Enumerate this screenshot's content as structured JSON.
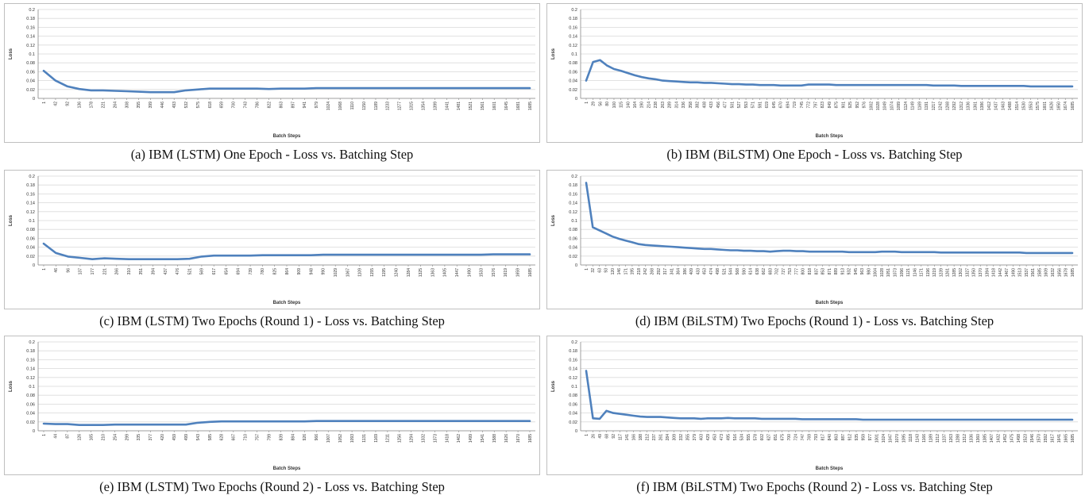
{
  "styles": {
    "line_color": "#4f81bd",
    "grid_color": "#d9d9d9",
    "frame_color": "#bfbfbf",
    "text_color": "#333333"
  },
  "chart_data": [
    {
      "type": "line",
      "caption": "(a) IBM (LSTM) One Epoch - Loss vs. Batching Step",
      "xlabel": "Batch Steps",
      "ylabel": "Loss",
      "ylim": [
        0,
        0.2
      ],
      "yticks": [
        "0",
        "0.02",
        "0.04",
        "0.06",
        "0.08",
        "0.1",
        "0.12",
        "0.14",
        "0.16",
        "0.18",
        "0.2"
      ],
      "grid": true,
      "legend": "none",
      "categories": [
        "1",
        "42",
        "92",
        "136",
        "178",
        "221",
        "264",
        "308",
        "355",
        "399",
        "446",
        "493",
        "532",
        "575",
        "618",
        "659",
        "700",
        "743",
        "786",
        "822",
        "863",
        "897",
        "941",
        "979",
        "1024",
        "1068",
        "1110",
        "1150",
        "1189",
        "1233",
        "1277",
        "1315",
        "1354",
        "1399",
        "1441",
        "1481",
        "1521",
        "1561",
        "1601",
        "1645",
        "1681",
        "1685"
      ],
      "values": [
        0.062,
        0.04,
        0.027,
        0.021,
        0.018,
        0.018,
        0.017,
        0.016,
        0.015,
        0.014,
        0.014,
        0.014,
        0.018,
        0.02,
        0.022,
        0.022,
        0.022,
        0.022,
        0.022,
        0.021,
        0.022,
        0.022,
        0.022,
        0.023,
        0.023,
        0.023,
        0.023,
        0.023,
        0.023,
        0.023,
        0.023,
        0.023,
        0.023,
        0.023,
        0.023,
        0.023,
        0.023,
        0.023,
        0.023,
        0.023,
        0.023,
        0.023
      ]
    },
    {
      "type": "line",
      "caption": "(b) IBM (BiLSTM) One Epoch - Loss vs. Batching Step",
      "xlabel": "Batch Steps",
      "ylabel": "Loss",
      "ylim": [
        0,
        0.2
      ],
      "yticks": [
        "0",
        "0.02",
        "0.04",
        "0.06",
        "0.08",
        "0.1",
        "0.12",
        "0.14",
        "0.16",
        "0.18",
        "0.2"
      ],
      "grid": true,
      "legend": "none",
      "categories": [
        "1",
        "29",
        "56",
        "80",
        "100",
        "115",
        "140",
        "164",
        "190",
        "214",
        "238",
        "263",
        "289",
        "314",
        "336",
        "358",
        "382",
        "408",
        "433",
        "456",
        "477",
        "501",
        "527",
        "553",
        "571",
        "591",
        "619",
        "645",
        "670",
        "694",
        "719",
        "745",
        "772",
        "797",
        "823",
        "849",
        "875",
        "901",
        "925",
        "952",
        "976",
        "1002",
        "1028",
        "1049",
        "1074",
        "1099",
        "1124",
        "1149",
        "1169",
        "1191",
        "1217",
        "1242",
        "1268",
        "1292",
        "1312",
        "1336",
        "1361",
        "1386",
        "1412",
        "1437",
        "1463",
        "1488",
        "1514",
        "1530",
        "1553",
        "1575",
        "1601",
        "1626",
        "1650",
        "1674",
        "1685"
      ],
      "values": [
        0.04,
        0.082,
        0.086,
        0.074,
        0.066,
        0.062,
        0.057,
        0.052,
        0.048,
        0.045,
        0.043,
        0.04,
        0.039,
        0.038,
        0.037,
        0.036,
        0.036,
        0.035,
        0.035,
        0.034,
        0.033,
        0.032,
        0.032,
        0.031,
        0.031,
        0.03,
        0.03,
        0.03,
        0.029,
        0.029,
        0.029,
        0.029,
        0.031,
        0.031,
        0.031,
        0.031,
        0.03,
        0.03,
        0.03,
        0.03,
        0.03,
        0.03,
        0.03,
        0.03,
        0.03,
        0.03,
        0.03,
        0.03,
        0.03,
        0.03,
        0.029,
        0.029,
        0.029,
        0.029,
        0.028,
        0.028,
        0.028,
        0.028,
        0.028,
        0.028,
        0.028,
        0.028,
        0.028,
        0.028,
        0.027,
        0.027,
        0.027,
        0.027,
        0.027,
        0.027,
        0.027
      ]
    },
    {
      "type": "line",
      "caption": "(c) IBM (LSTM) Two Epochs (Round 1) - Loss vs. Batching Step",
      "xlabel": "Batch Steps",
      "ylabel": "Loss",
      "ylim": [
        0,
        0.2
      ],
      "yticks": [
        "0",
        "0.02",
        "0.04",
        "0.06",
        "0.08",
        "0.1",
        "0.12",
        "0.14",
        "0.16",
        "0.18",
        "0.2"
      ],
      "grid": true,
      "legend": "none",
      "categories": [
        "1",
        "46",
        "96",
        "137",
        "177",
        "221",
        "266",
        "310",
        "351",
        "394",
        "437",
        "476",
        "521",
        "569",
        "617",
        "654",
        "694",
        "739",
        "780",
        "825",
        "864",
        "909",
        "948",
        "990",
        "1029",
        "1067",
        "1109",
        "1155",
        "1195",
        "1240",
        "1284",
        "1325",
        "1363",
        "1405",
        "1447",
        "1490",
        "1533",
        "1576",
        "1619",
        "1659",
        "1685"
      ],
      "values": [
        0.048,
        0.027,
        0.019,
        0.016,
        0.013,
        0.015,
        0.014,
        0.013,
        0.013,
        0.013,
        0.013,
        0.013,
        0.014,
        0.019,
        0.021,
        0.021,
        0.021,
        0.021,
        0.022,
        0.022,
        0.022,
        0.022,
        0.022,
        0.023,
        0.023,
        0.023,
        0.023,
        0.023,
        0.023,
        0.023,
        0.023,
        0.023,
        0.023,
        0.023,
        0.023,
        0.023,
        0.023,
        0.024,
        0.024,
        0.024,
        0.024
      ]
    },
    {
      "type": "line",
      "caption": "(d) IBM (BiLSTM) Two Epochs (Round 1) - Loss vs. Batching Step",
      "xlabel": "Batch Steps",
      "ylabel": "Loss",
      "ylim": [
        0,
        0.2
      ],
      "yticks": [
        "0",
        "0.02",
        "0.04",
        "0.06",
        "0.08",
        "0.1",
        "0.12",
        "0.14",
        "0.16",
        "0.18",
        "0.2"
      ],
      "grid": true,
      "legend": "none",
      "categories": [
        "1",
        "32",
        "63",
        "93",
        "120",
        "146",
        "171",
        "195",
        "218",
        "242",
        "268",
        "292",
        "317",
        "341",
        "364",
        "386",
        "409",
        "433",
        "453",
        "474",
        "498",
        "521",
        "544",
        "568",
        "590",
        "614",
        "638",
        "662",
        "683",
        "702",
        "727",
        "753",
        "777",
        "800",
        "818",
        "837",
        "853",
        "871",
        "889",
        "913",
        "932",
        "945",
        "963",
        "980",
        "1004",
        "1028",
        "1051",
        "1073",
        "1096",
        "1121",
        "1146",
        "1171",
        "1196",
        "1219",
        "1239",
        "1261",
        "1285",
        "1302",
        "1327",
        "1350",
        "1370",
        "1394",
        "1418",
        "1442",
        "1467",
        "1490",
        "1513",
        "1537",
        "1561",
        "1585",
        "1609",
        "1632",
        "1656",
        "1678",
        "1685"
      ],
      "values": [
        0.185,
        0.085,
        0.078,
        0.071,
        0.064,
        0.059,
        0.055,
        0.051,
        0.047,
        0.045,
        0.044,
        0.043,
        0.042,
        0.041,
        0.04,
        0.039,
        0.038,
        0.037,
        0.036,
        0.036,
        0.035,
        0.034,
        0.033,
        0.033,
        0.032,
        0.032,
        0.031,
        0.031,
        0.03,
        0.031,
        0.032,
        0.032,
        0.031,
        0.031,
        0.03,
        0.03,
        0.03,
        0.03,
        0.03,
        0.03,
        0.029,
        0.029,
        0.029,
        0.029,
        0.029,
        0.03,
        0.03,
        0.03,
        0.029,
        0.029,
        0.029,
        0.029,
        0.029,
        0.029,
        0.028,
        0.028,
        0.028,
        0.028,
        0.028,
        0.028,
        0.028,
        0.028,
        0.028,
        0.028,
        0.028,
        0.028,
        0.028,
        0.027,
        0.027,
        0.027,
        0.027,
        0.027,
        0.027,
        0.027,
        0.027
      ]
    },
    {
      "type": "line",
      "caption": "(e) IBM (LSTM) Two Epochs (Round 2) - Loss vs. Batching Step",
      "xlabel": "Batch Steps",
      "ylabel": "Loss",
      "ylim": [
        0,
        0.2
      ],
      "yticks": [
        "0",
        "0.02",
        "0.04",
        "0.06",
        "0.08",
        "0.1",
        "0.12",
        "0.14",
        "0.16",
        "0.18",
        "0.2"
      ],
      "grid": true,
      "legend": "none",
      "categories": [
        "1",
        "44",
        "87",
        "126",
        "165",
        "210",
        "254",
        "299",
        "335",
        "377",
        "420",
        "459",
        "499",
        "543",
        "585",
        "628",
        "667",
        "710",
        "757",
        "799",
        "839",
        "884",
        "926",
        "966",
        "1007",
        "1052",
        "1093",
        "1131",
        "1169",
        "1211",
        "1256",
        "1294",
        "1332",
        "1373",
        "1418",
        "1462",
        "1499",
        "1541",
        "1588",
        "1626",
        "1670",
        "1685"
      ],
      "values": [
        0.016,
        0.015,
        0.015,
        0.013,
        0.013,
        0.013,
        0.014,
        0.014,
        0.014,
        0.014,
        0.014,
        0.014,
        0.014,
        0.018,
        0.02,
        0.021,
        0.021,
        0.021,
        0.021,
        0.021,
        0.021,
        0.021,
        0.021,
        0.022,
        0.022,
        0.022,
        0.022,
        0.022,
        0.022,
        0.022,
        0.022,
        0.022,
        0.022,
        0.022,
        0.022,
        0.022,
        0.022,
        0.022,
        0.022,
        0.022,
        0.022,
        0.022
      ]
    },
    {
      "type": "line",
      "caption": "(f) IBM (BiLSTM) Two Epochs (Round 2) - Loss vs. Batching Step",
      "xlabel": "Batch Steps",
      "ylabel": "Loss",
      "ylim": [
        0,
        0.2
      ],
      "yticks": [
        "0",
        "0.02",
        "0.04",
        "0.06",
        "0.08",
        "0.1",
        "0.12",
        "0.14",
        "0.16",
        "0.18",
        "0.2"
      ],
      "grid": true,
      "legend": "none",
      "categories": [
        "1",
        "26",
        "49",
        "68",
        "92",
        "117",
        "141",
        "166",
        "188",
        "212",
        "237",
        "261",
        "284",
        "309",
        "332",
        "355",
        "379",
        "403",
        "429",
        "453",
        "473",
        "495",
        "516",
        "534",
        "555",
        "578",
        "602",
        "627",
        "651",
        "675",
        "700",
        "724",
        "747",
        "769",
        "793",
        "817",
        "840",
        "863",
        "887",
        "912",
        "935",
        "959",
        "977",
        "1001",
        "1024",
        "1047",
        "1070",
        "1095",
        "1118",
        "1143",
        "1166",
        "1189",
        "1212",
        "1237",
        "1263",
        "1288",
        "1312",
        "1336",
        "1360",
        "1385",
        "1407",
        "1432",
        "1452",
        "1475",
        "1498",
        "1523",
        "1546",
        "1570",
        "1592",
        "1617",
        "1641",
        "1665",
        "1685"
      ],
      "values": [
        0.135,
        0.028,
        0.027,
        0.045,
        0.04,
        0.038,
        0.036,
        0.034,
        0.032,
        0.031,
        0.031,
        0.031,
        0.03,
        0.029,
        0.028,
        0.028,
        0.028,
        0.027,
        0.028,
        0.028,
        0.028,
        0.029,
        0.028,
        0.028,
        0.028,
        0.028,
        0.027,
        0.027,
        0.027,
        0.027,
        0.027,
        0.027,
        0.026,
        0.026,
        0.026,
        0.026,
        0.026,
        0.026,
        0.026,
        0.026,
        0.026,
        0.025,
        0.025,
        0.025,
        0.025,
        0.025,
        0.025,
        0.025,
        0.025,
        0.025,
        0.025,
        0.025,
        0.025,
        0.025,
        0.025,
        0.025,
        0.025,
        0.025,
        0.025,
        0.025,
        0.025,
        0.025,
        0.025,
        0.025,
        0.025,
        0.025,
        0.025,
        0.025,
        0.025,
        0.025,
        0.025,
        0.025,
        0.025
      ]
    }
  ]
}
